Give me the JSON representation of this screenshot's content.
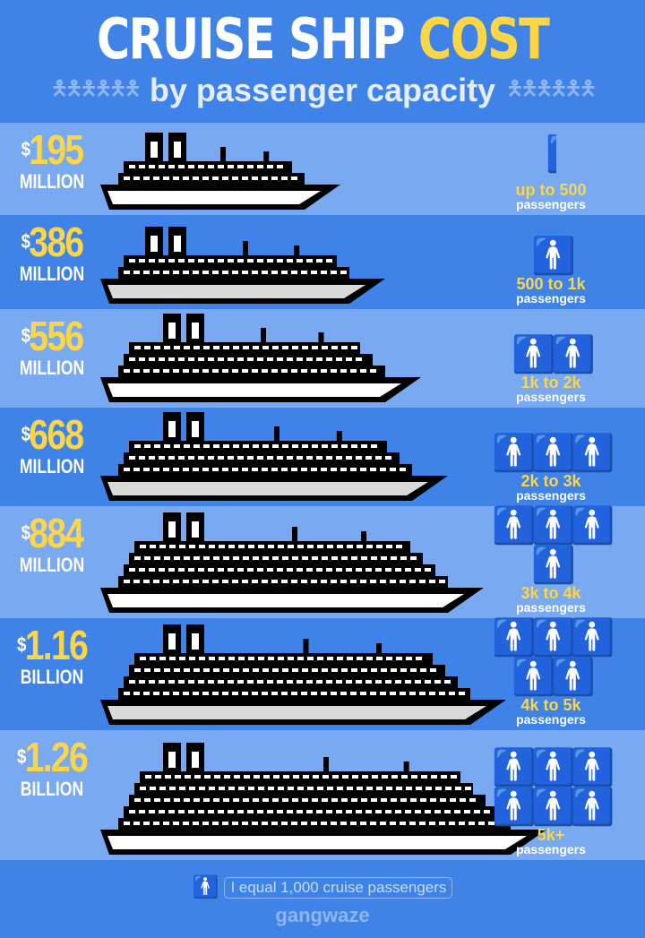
{
  "header": {
    "title_white": "CRUISE SHIP",
    "title_yellow": "COST",
    "subtitle": "by passenger capacity"
  },
  "colors": {
    "dark_band": "#3f83e8",
    "light_band": "#79a9f1",
    "accent_yellow": "#fcd647",
    "ship": "#000000",
    "hull": "#ffffff"
  },
  "chart_data": {
    "type": "pictogram-bar",
    "title": "CRUISE SHIP COST by passenger capacity",
    "categories": [
      "up to 500",
      "500 to 1k",
      "1k to 2k",
      "2k to 3k",
      "3k to 4k",
      "4k to 5k",
      "5k+"
    ],
    "values_usd_millions": [
      195,
      386,
      556,
      668,
      884,
      1160,
      1260
    ],
    "rows": [
      {
        "amount": "195",
        "unit": "MILLION",
        "range": "up to 500",
        "passengers": "passengers",
        "icons": 0.5
      },
      {
        "amount": "386",
        "unit": "MILLION",
        "range": "500 to 1k",
        "passengers": "passengers",
        "icons": 1
      },
      {
        "amount": "556",
        "unit": "MILLION",
        "range": "1k to 2k",
        "passengers": "passengers",
        "icons": 2
      },
      {
        "amount": "668",
        "unit": "MILLION",
        "range": "2k to 3k",
        "passengers": "passengers",
        "icons": 3
      },
      {
        "amount": "884",
        "unit": "MILLION",
        "range": "3k to 4k",
        "passengers": "passengers",
        "icons": 4
      },
      {
        "amount": "1.16",
        "unit": "BILLION",
        "range": "4k to 5k",
        "passengers": "passengers",
        "icons": 5
      },
      {
        "amount": "1.26",
        "unit": "BILLION",
        "range": "5k+",
        "passengers": "passengers",
        "icons": 6
      }
    ],
    "currency_symbol": "$",
    "icon": "person-icon"
  },
  "footer": {
    "legend": "I equal 1,000 cruise passengers",
    "brand": "gangwaze"
  }
}
